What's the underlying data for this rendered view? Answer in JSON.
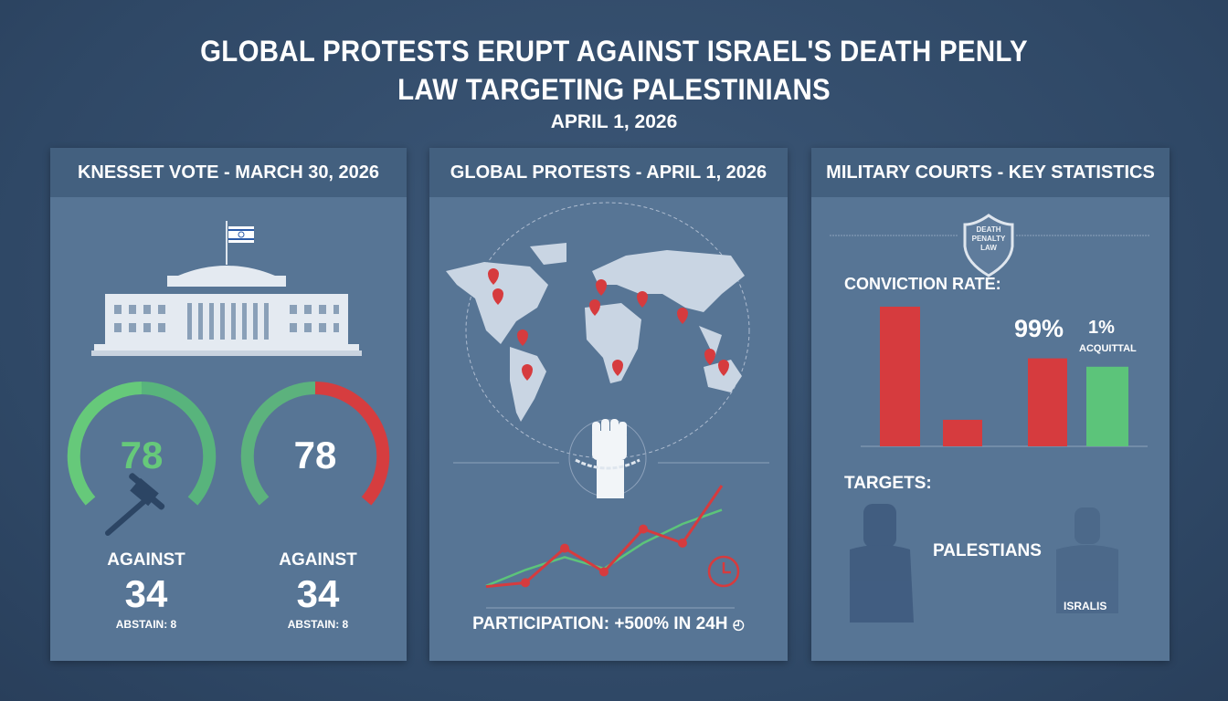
{
  "header": {
    "title_line1": "GLOBAL PROTESTS ERUPT AGAINST ISRAEL'S DEATH PENLY",
    "title_line2": "LAW TARGETING PALESTINIANS",
    "date": "APRIL 1, 2026"
  },
  "panels": {
    "knesset": {
      "title": "KNESSET VOTE - MARCH 30, 2026",
      "gauges": [
        {
          "value": "78",
          "label": "AGAINST",
          "count": "34",
          "abstain": "ABSTAIN: 8",
          "colors": [
            "#66c97a",
            "#58b47c"
          ]
        },
        {
          "value": "78",
          "label": "AGAINST",
          "count": "34",
          "abstain": "ABSTAIN: 8",
          "colors": [
            "#5cb27d",
            "#d63d3f"
          ]
        }
      ],
      "icons": [
        "parliament-building-icon",
        "israel-flag-icon",
        "gavel-icon"
      ]
    },
    "protests": {
      "title": "GLOBAL PROTESTS - APRIL 1, 2026",
      "participation": "PARTICIPATION: +500% IN 24H",
      "icons": [
        "world-map-icon",
        "map-pin-icon",
        "raised-fist-chain-icon",
        "clock-icon"
      ],
      "trend_red": [
        2,
        8,
        62,
        25,
        92,
        70,
        160
      ],
      "trend_green": [
        3,
        28,
        48,
        30,
        70,
        100,
        122
      ]
    },
    "courts": {
      "title": "MILITARY COURTS - KEY STATISTICS",
      "shield_text": "DEATH PENALTY LAW",
      "conviction_label": "CONVICTION RATE:",
      "conviction_value": "99%",
      "acquittal_value": "1%",
      "acquittal_label": "ACQUITTAL",
      "bars": [
        1.0,
        0.19,
        0.63,
        0.57
      ],
      "colors": {
        "red": "#d63b3e",
        "green": "#5cc47a"
      },
      "targets_label": "TARGETS:",
      "target_primary": "PALESTIANS",
      "target_secondary": "ISRALIS"
    }
  }
}
